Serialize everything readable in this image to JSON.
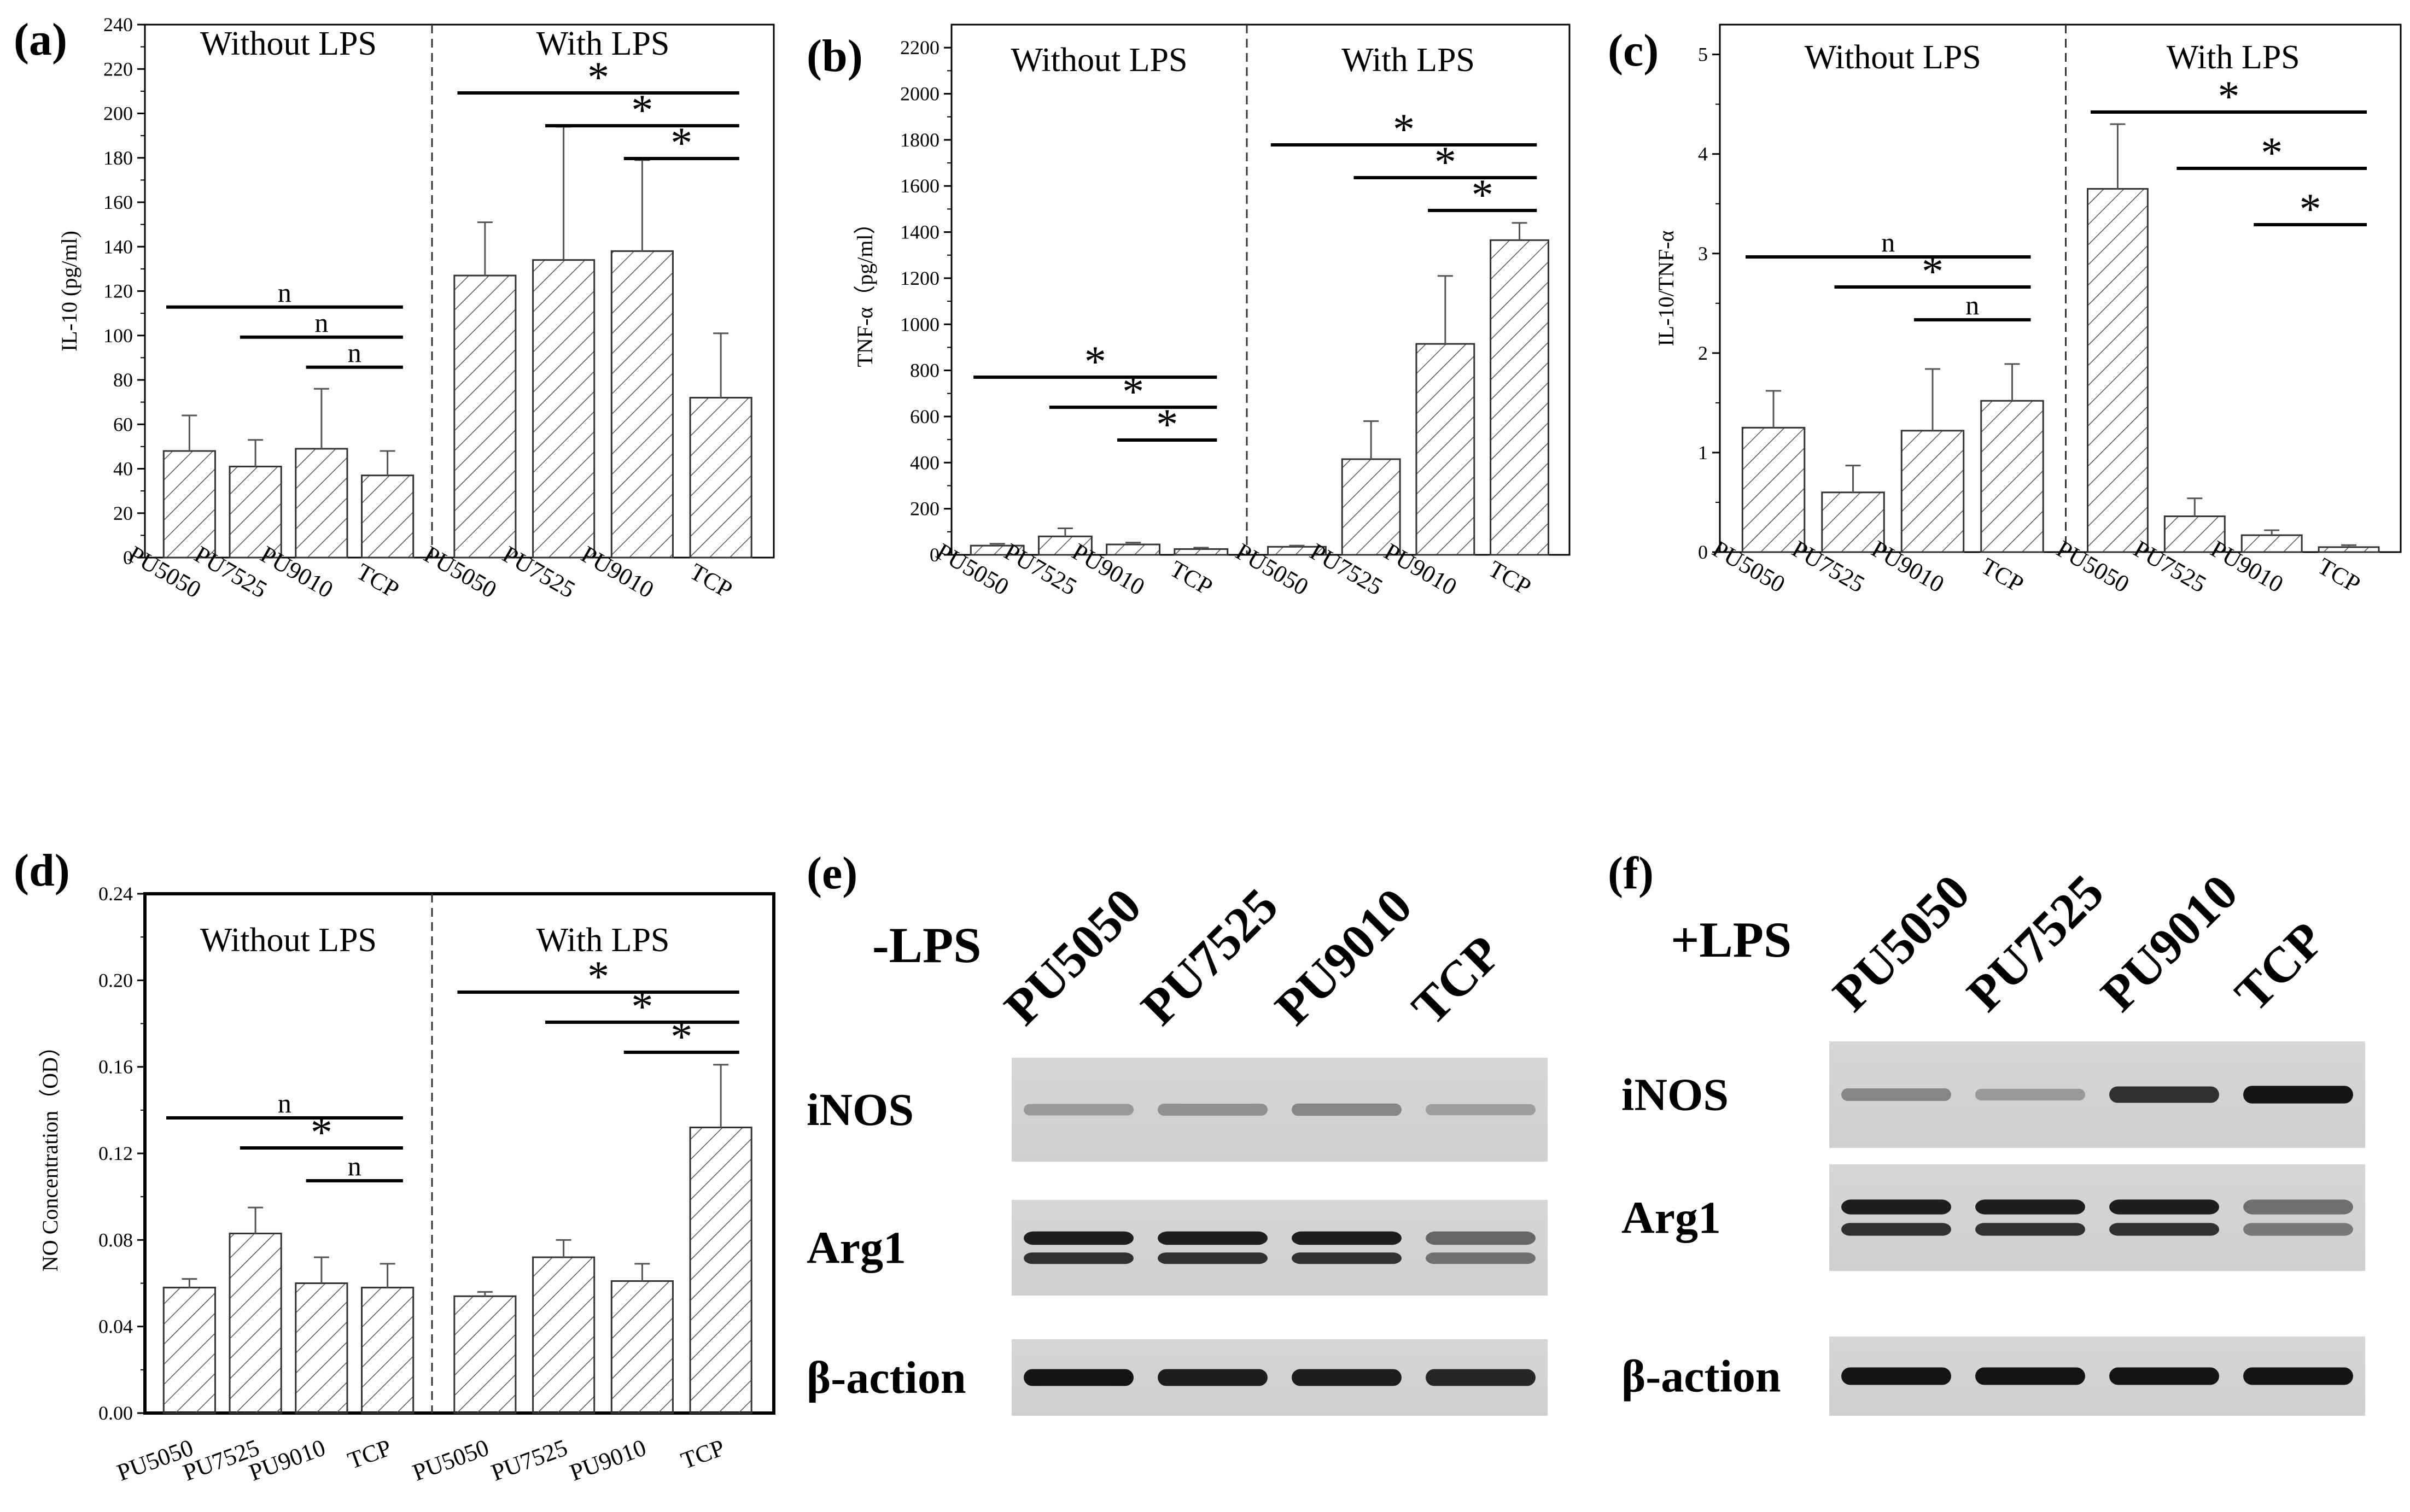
{
  "chart_data": [
    {
      "id": "a",
      "panel_label": "(a)",
      "type": "bar",
      "ylabel": "IL-10 (pg/ml)",
      "ylim": [
        0,
        240
      ],
      "yticks": [
        "0",
        "20",
        "40",
        "60",
        "80",
        "100",
        "120",
        "140",
        "160",
        "180",
        "200",
        "220",
        "240"
      ],
      "groups": [
        {
          "title": "Without LPS",
          "categories": [
            "PU5050",
            "PU7525",
            "PU9010",
            "TCP"
          ],
          "values": [
            48,
            41,
            49,
            37
          ],
          "errors": [
            16,
            12,
            27,
            11
          ]
        },
        {
          "title": "With LPS",
          "categories": [
            "PU5050",
            "PU7525",
            "PU9010",
            "TCP"
          ],
          "values": [
            127,
            134,
            138,
            72
          ],
          "errors": [
            24,
            60,
            41,
            29
          ]
        }
      ],
      "sig": [
        {
          "g": 0,
          "from": 0,
          "to": 3,
          "label": "n"
        },
        {
          "g": 0,
          "from": 1,
          "to": 3,
          "label": "n"
        },
        {
          "g": 0,
          "from": 2,
          "to": 3,
          "label": "n"
        },
        {
          "g": 1,
          "from": 0,
          "to": 3,
          "label": "*"
        },
        {
          "g": 1,
          "from": 1,
          "to": 3,
          "label": "*"
        },
        {
          "g": 1,
          "from": 2,
          "to": 3,
          "label": "*"
        }
      ]
    },
    {
      "id": "b",
      "panel_label": "(b)",
      "type": "bar",
      "ylabel": "TNF-α（pg/ml）",
      "ylim": [
        0,
        2300
      ],
      "yticks": [
        "0",
        "200",
        "400",
        "600",
        "800",
        "1000",
        "1200",
        "1400",
        "1600",
        "1800",
        "2000",
        "2200"
      ],
      "groups": [
        {
          "title": "Without LPS",
          "categories": [
            "PU5050",
            "PU7525",
            "PU9010",
            "TCP"
          ],
          "values": [
            40,
            80,
            45,
            25
          ],
          "errors": [
            8,
            35,
            8,
            6
          ]
        },
        {
          "title": "With LPS",
          "categories": [
            "PU5050",
            "PU7525",
            "PU9010",
            "TCP"
          ],
          "values": [
            35,
            415,
            915,
            1365
          ],
          "errors": [
            5,
            165,
            295,
            75
          ]
        }
      ],
      "sig": [
        {
          "g": 0,
          "from": 0,
          "to": 3,
          "label": "*"
        },
        {
          "g": 0,
          "from": 1,
          "to": 3,
          "label": "*"
        },
        {
          "g": 0,
          "from": 2,
          "to": 3,
          "label": "*"
        },
        {
          "g": 1,
          "from": 0,
          "to": 3,
          "label": "*"
        },
        {
          "g": 1,
          "from": 1,
          "to": 3,
          "label": "*"
        },
        {
          "g": 1,
          "from": 2,
          "to": 3,
          "label": "*"
        }
      ]
    },
    {
      "id": "c",
      "panel_label": "(c)",
      "type": "bar",
      "ylabel": "IL-10/TNF-α",
      "ylim": [
        0,
        5.3
      ],
      "yticks": [
        "0",
        "1",
        "2",
        "3",
        "4",
        "5"
      ],
      "groups": [
        {
          "title": "Without LPS",
          "categories": [
            "PU5050",
            "PU7525",
            "PU9010",
            "TCP"
          ],
          "values": [
            1.25,
            0.6,
            1.22,
            1.52
          ],
          "errors": [
            0.37,
            0.27,
            0.62,
            0.37
          ]
        },
        {
          "title": "With LPS",
          "categories": [
            "PU5050",
            "PU7525",
            "PU9010",
            "TCP"
          ],
          "values": [
            3.65,
            0.36,
            0.17,
            0.05
          ],
          "errors": [
            0.65,
            0.18,
            0.05,
            0.02
          ]
        }
      ],
      "sig": [
        {
          "g": 0,
          "from": 0,
          "to": 3,
          "label": "n"
        },
        {
          "g": 0,
          "from": 1,
          "to": 3,
          "label": "*"
        },
        {
          "g": 0,
          "from": 2,
          "to": 3,
          "label": "n"
        },
        {
          "g": 1,
          "from": 0,
          "to": 3,
          "label": "*"
        },
        {
          "g": 1,
          "from": 1,
          "to": 3,
          "label": "*"
        },
        {
          "g": 1,
          "from": 2,
          "to": 3,
          "label": "*"
        }
      ]
    },
    {
      "id": "d",
      "panel_label": "(d)",
      "type": "bar",
      "ylabel": "NO Concentration（OD）",
      "ylim": [
        0,
        0.24
      ],
      "yticks": [
        "0.00",
        "0.04",
        "0.08",
        "0.12",
        "0.16",
        "0.20",
        "0.24"
      ],
      "groups": [
        {
          "title": "Without LPS",
          "categories": [
            "PU5050",
            "PU7525",
            "PU9010",
            "TCP"
          ],
          "values": [
            0.058,
            0.083,
            0.06,
            0.058
          ],
          "errors": [
            0.004,
            0.012,
            0.012,
            0.011
          ]
        },
        {
          "title": "With LPS",
          "categories": [
            "PU5050",
            "PU7525",
            "PU9010",
            "TCP"
          ],
          "values": [
            0.054,
            0.072,
            0.061,
            0.132
          ],
          "errors": [
            0.002,
            0.008,
            0.008,
            0.029
          ]
        }
      ],
      "sig": [
        {
          "g": 0,
          "from": 0,
          "to": 3,
          "label": "n"
        },
        {
          "g": 0,
          "from": 1,
          "to": 3,
          "label": "*"
        },
        {
          "g": 0,
          "from": 2,
          "to": 3,
          "label": "n"
        },
        {
          "g": 1,
          "from": 0,
          "to": 3,
          "label": "*"
        },
        {
          "g": 1,
          "from": 1,
          "to": 3,
          "label": "*"
        },
        {
          "g": 1,
          "from": 2,
          "to": 3,
          "label": "*"
        }
      ]
    }
  ],
  "blots": [
    {
      "id": "e",
      "panel_label": "(e)",
      "condition": "-LPS",
      "lanes": [
        "PU5050",
        "PU7525",
        "PU9010",
        "TCP"
      ],
      "rows": [
        {
          "label": "iNOS",
          "band_intensity": [
            0.25,
            0.3,
            0.35,
            0.22
          ],
          "double": false
        },
        {
          "label": "Arg1",
          "band_intensity": [
            0.95,
            0.95,
            0.95,
            0.55
          ],
          "double": true
        },
        {
          "label": "β-action",
          "band_intensity": [
            0.95,
            0.9,
            0.9,
            0.85
          ],
          "double": false
        }
      ]
    },
    {
      "id": "f",
      "panel_label": "(f)",
      "condition": "+LPS",
      "lanes": [
        "PU5050",
        "PU7525",
        "PU9010",
        "TCP"
      ],
      "rows": [
        {
          "label": "iNOS",
          "band_intensity": [
            0.35,
            0.25,
            0.8,
            0.95
          ],
          "double": false
        },
        {
          "label": "Arg1",
          "band_intensity": [
            0.95,
            0.95,
            0.95,
            0.5
          ],
          "double": true
        },
        {
          "label": "β-action",
          "band_intensity": [
            0.95,
            0.95,
            0.95,
            0.95
          ],
          "double": false
        }
      ]
    }
  ]
}
